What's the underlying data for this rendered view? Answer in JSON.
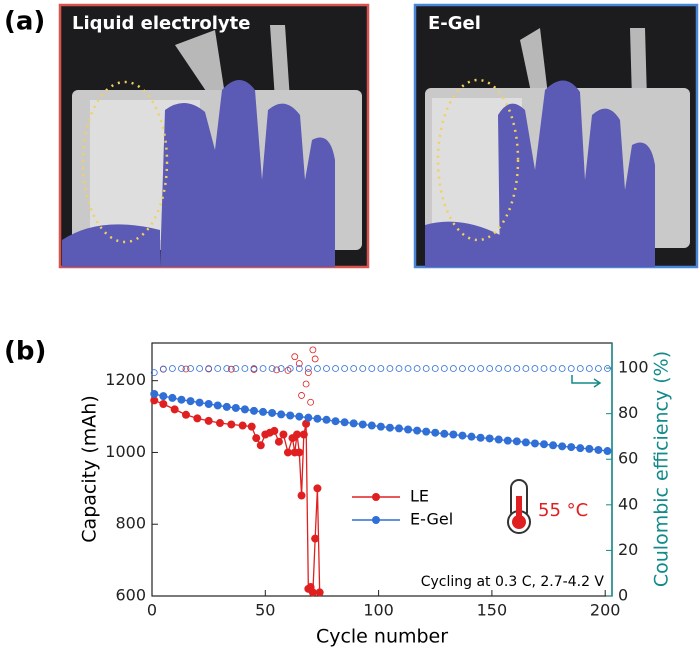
{
  "panel_a": {
    "label": "(a)",
    "photos": [
      "Liquid electrolyte",
      "E-Gel"
    ]
  },
  "chart_data": {
    "type": "scatter",
    "panel_label": "(b)",
    "xlabel": "Cycle number",
    "ylabel": "Capacity (mAh)",
    "y2label": "Coulombic efficiency (%)",
    "xlim": [
      0,
      203
    ],
    "xticks": [
      0,
      50,
      100,
      150,
      200
    ],
    "ylim": [
      600,
      1305
    ],
    "yticks": [
      600,
      800,
      1000,
      1200
    ],
    "y2lim": [
      0,
      111
    ],
    "y2ticks": [
      0,
      20,
      40,
      60,
      80,
      100
    ],
    "annotations": [
      "55 °C",
      "Cycling at 0.3 C, 2.7-4.2 V"
    ],
    "legend": "center",
    "series": [
      {
        "name": "LE",
        "color": "#e02020",
        "marker": "filled",
        "line": true,
        "x": [
          1,
          5,
          10,
          15,
          20,
          25,
          30,
          35,
          40,
          44,
          46,
          48,
          50,
          52,
          54,
          56,
          58,
          60,
          62,
          63,
          64,
          65,
          66,
          67,
          68,
          69,
          70,
          71,
          72,
          73,
          74
        ],
        "values": [
          1145,
          1135,
          1120,
          1105,
          1095,
          1088,
          1082,
          1078,
          1075,
          1072,
          1040,
          1020,
          1050,
          1055,
          1060,
          1030,
          1050,
          1000,
          1040,
          1000,
          1050,
          1000,
          880,
          1050,
          1080,
          620,
          625,
          610,
          760,
          900,
          610
        ]
      },
      {
        "name": "E-Gel",
        "color": "#2f6fd6",
        "marker": "filled",
        "line": true,
        "x": [
          1,
          5,
          9,
          13,
          17,
          21,
          25,
          29,
          33,
          37,
          41,
          45,
          49,
          53,
          57,
          61,
          65,
          69,
          73,
          77,
          81,
          85,
          89,
          93,
          97,
          101,
          105,
          109,
          113,
          117,
          121,
          125,
          129,
          133,
          137,
          141,
          145,
          149,
          153,
          157,
          161,
          165,
          169,
          173,
          177,
          181,
          185,
          189,
          193,
          197,
          201
        ],
        "values": [
          1163,
          1157,
          1152,
          1147,
          1143,
          1139,
          1135,
          1131,
          1127,
          1124,
          1120,
          1116,
          1113,
          1110,
          1106,
          1103,
          1100,
          1097,
          1094,
          1091,
          1087,
          1084,
          1081,
          1078,
          1075,
          1072,
          1069,
          1067,
          1064,
          1061,
          1058,
          1055,
          1052,
          1050,
          1047,
          1044,
          1041,
          1039,
          1036,
          1033,
          1031,
          1028,
          1025,
          1023,
          1020,
          1017,
          1015,
          1012,
          1010,
          1007,
          1004
        ]
      },
      {
        "color": "#e02020",
        "marker": "open",
        "line": false,
        "axis": "y2",
        "x": [
          5,
          15,
          25,
          35,
          45,
          55,
          60,
          63,
          65,
          66,
          68,
          69,
          70,
          71,
          72
        ],
        "values": [
          99.5,
          99.6,
          99.6,
          99.5,
          99.4,
          99.2,
          99,
          105,
          102,
          88,
          93,
          98,
          85,
          108,
          104
        ]
      },
      {
        "color": "#2f6fd6",
        "marker": "open",
        "line": false,
        "axis": "y2",
        "x": [
          1,
          5,
          9,
          13,
          17,
          21,
          25,
          29,
          33,
          37,
          41,
          45,
          49,
          53,
          57,
          61,
          65,
          69,
          73,
          77,
          81,
          85,
          89,
          93,
          97,
          101,
          105,
          109,
          113,
          117,
          121,
          125,
          129,
          133,
          137,
          141,
          145,
          149,
          153,
          157,
          161,
          165,
          169,
          173,
          177,
          181,
          185,
          189,
          193,
          197,
          201
        ],
        "values": [
          98,
          99.6,
          99.8,
          99.8,
          99.8,
          99.8,
          99.8,
          99.8,
          99.8,
          99.8,
          99.8,
          99.8,
          99.8,
          99.8,
          99.8,
          99.8,
          99.8,
          99.8,
          99.8,
          99.8,
          99.8,
          99.8,
          99.8,
          99.8,
          99.8,
          99.8,
          99.8,
          99.8,
          99.8,
          99.8,
          99.8,
          99.8,
          99.8,
          99.8,
          99.8,
          99.8,
          99.8,
          99.8,
          99.8,
          99.8,
          99.8,
          99.8,
          99.8,
          99.8,
          99.8,
          99.8,
          99.8,
          99.8,
          99.8,
          99.8,
          99.8
        ]
      }
    ]
  }
}
